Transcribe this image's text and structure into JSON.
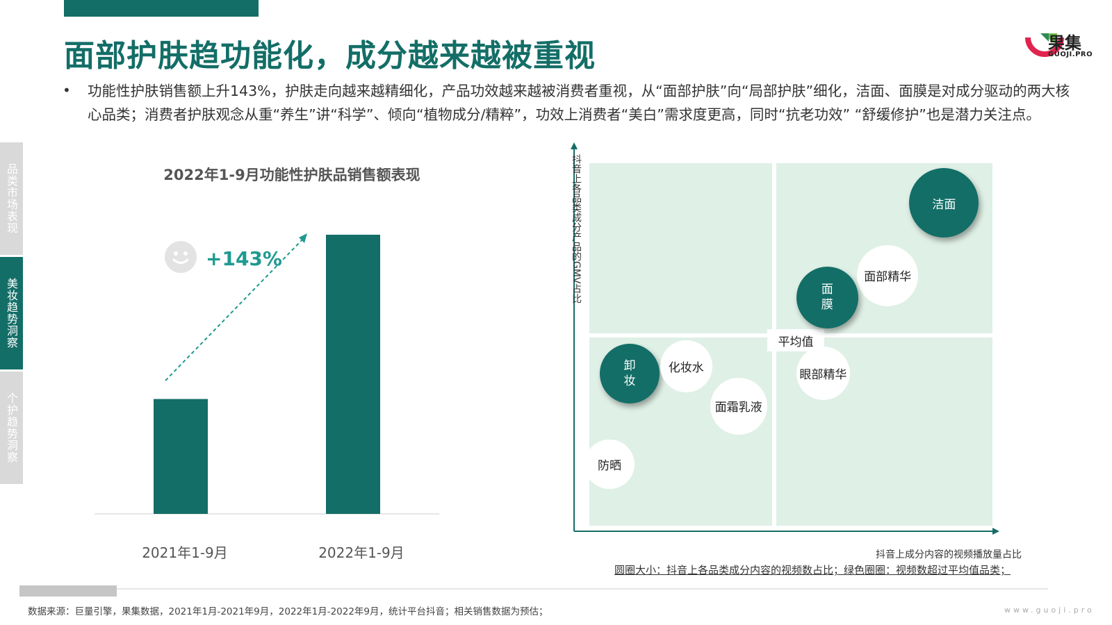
{
  "header": {
    "title": "面部护肤趋功能化，成分越来越被重视",
    "logo_text": "果集",
    "logo_sub": "GUOJI.PRO"
  },
  "bullet": {
    "symbol": "•",
    "text": "功能性护肤销售额上升143%，护肤走向越来越精细化，产品功效越来越被消费者重视，从“面部护肤”向“局部护肤”细化，洁面、面膜是对成分驱动的两大核心品类；消费者护肤观念从重“养生”讲“科学”、倾向“植物成分/精粹”，功效上消费者“美白”需求度更高，同时“抗老功效” “舒缓修护”也是潜力关注点。"
  },
  "side_tabs": [
    {
      "label": "品类市场表现",
      "state": "inactive"
    },
    {
      "label": "美妆趋势洞察",
      "state": "active"
    },
    {
      "label": "个护趋势洞察",
      "state": "inactive"
    }
  ],
  "colors": {
    "brand": "#136e67",
    "accent": "#1e9a91",
    "quadrant_fill": "#dff0e6",
    "inactive_tab": "#d9d9d9"
  },
  "growth": {
    "icon": "smiley-icon",
    "label": "+143%"
  },
  "chart_data": [
    {
      "type": "bar",
      "title": "2022年1-9月功能性护肤品销售额表现",
      "categories": [
        "2021年1-9月",
        "2022年1-9月"
      ],
      "values": [
        1.0,
        2.43
      ],
      "annotation": "+143%"
    },
    {
      "type": "scatter",
      "subtype": "bubble-quadrant",
      "ylabel": "抖音上各品类成分产品的GMV占比",
      "xlabel": "抖音上成分内容的视频播放量占比",
      "center_label": "平均值",
      "size_note": "圆圈大小：抖音上各品类成分内容的视频数占比；绿色圈圈：视频数超过平均值品类；",
      "points": [
        {
          "label": "洁面",
          "x": 0.88,
          "y": 0.89,
          "size": 1.0,
          "highlight": true
        },
        {
          "label": "面部精华",
          "x": 0.74,
          "y": 0.69,
          "size": 0.8,
          "highlight": false
        },
        {
          "label": "面膜",
          "x": 0.59,
          "y": 0.63,
          "size": 0.82,
          "highlight": true
        },
        {
          "label": "卸妆",
          "x": 0.1,
          "y": 0.42,
          "size": 0.76,
          "highlight": true
        },
        {
          "label": "化妆水",
          "x": 0.24,
          "y": 0.44,
          "size": 0.58,
          "highlight": false
        },
        {
          "label": "眼部精华",
          "x": 0.58,
          "y": 0.42,
          "size": 0.62,
          "highlight": false
        },
        {
          "label": "面霜乳液",
          "x": 0.37,
          "y": 0.33,
          "size": 0.7,
          "highlight": false
        },
        {
          "label": "防晒",
          "x": 0.05,
          "y": 0.17,
          "size": 0.52,
          "highlight": false
        }
      ]
    }
  ],
  "footer": {
    "source": "数据来源：巨量引擎，果集数据，2021年1月-2021年9月，2022年1月-2022年9月，统计平台抖音；相关销售数据为预估；",
    "url": "www.guoji.pro"
  }
}
